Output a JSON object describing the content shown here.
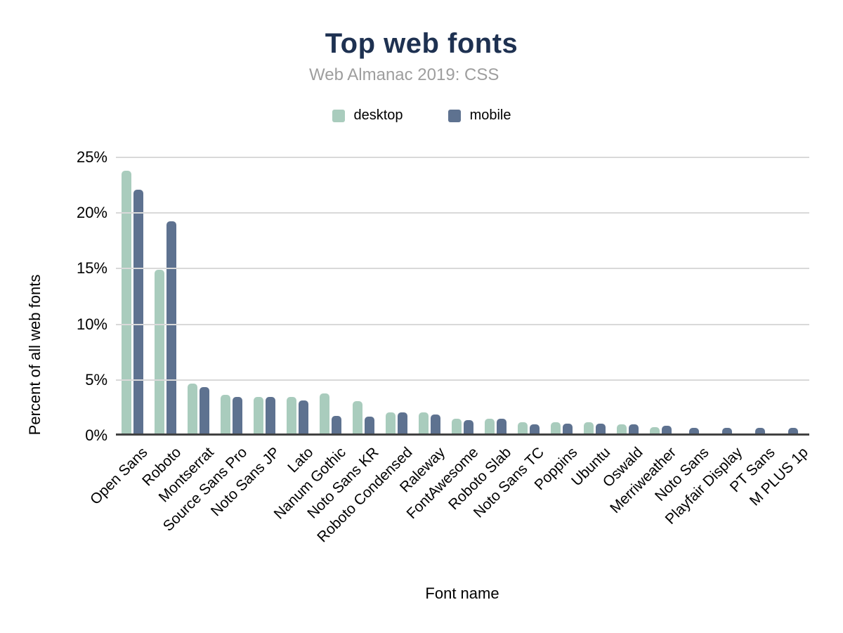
{
  "chart_data": {
    "type": "bar",
    "title": "Top web fonts",
    "subtitle": "Web Almanac 2019: CSS",
    "xlabel": "Font name",
    "ylabel": "Percent of all web fonts",
    "ylim": [
      0,
      25
    ],
    "grid": true,
    "legend_position": "top",
    "y_ticks": {
      "labels": [
        "0%",
        "5%",
        "10%",
        "15%",
        "20%",
        "25%"
      ],
      "values": [
        0,
        5,
        10,
        15,
        20,
        25
      ]
    },
    "categories": [
      "Open Sans",
      "Roboto",
      "Montserrat",
      "Source Sans Pro",
      "Noto Sans JP",
      "Lato",
      "Nanum Gothic",
      "Noto Sans KR",
      "Roboto Condensed",
      "Raleway",
      "FontAwesome",
      "Roboto Slab",
      "Noto Sans TC",
      "Poppins",
      "Ubuntu",
      "Oswald",
      "Merriweather",
      "Noto Sans",
      "Playfair Display",
      "PT Sans",
      "M PLUS 1p"
    ],
    "series": [
      {
        "name": "desktop",
        "color": "#a9ccbd",
        "values": [
          23.6,
          14.7,
          4.5,
          3.5,
          3.3,
          3.3,
          3.6,
          2.9,
          1.9,
          1.9,
          1.3,
          1.3,
          1.0,
          1.0,
          1.0,
          0.8,
          0.6,
          0,
          0,
          0,
          0
        ]
      },
      {
        "name": "mobile",
        "color": "#5e7290",
        "values": [
          21.9,
          19.1,
          4.2,
          3.3,
          3.3,
          3.0,
          1.6,
          1.5,
          1.9,
          1.7,
          1.2,
          1.3,
          0.8,
          0.9,
          0.9,
          0.8,
          0.7,
          0.5,
          0.5,
          0.5,
          0.5
        ]
      }
    ],
    "colors": {
      "title": "#1e3151",
      "subtitle": "#9e9e9e",
      "axis_text": "#000000",
      "gridline": "#d9d9d9",
      "baseline": "#424242",
      "background": "#ffffff"
    }
  }
}
